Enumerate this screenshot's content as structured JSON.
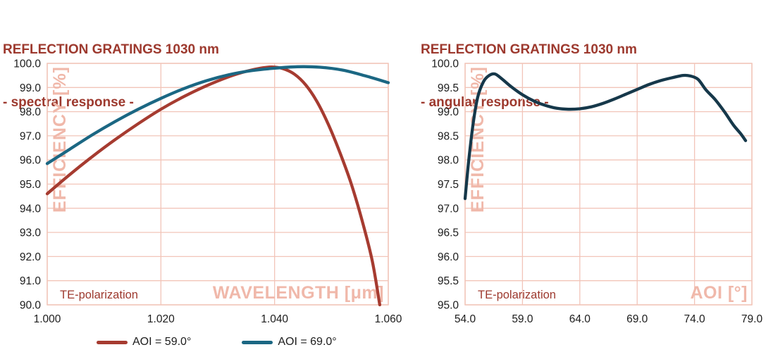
{
  "colors": {
    "title": "#9d392e",
    "grid": "#f2c5b9",
    "axis_label": "#f0b8aa",
    "tick_label": "#1c1c1c",
    "series_red": "#a63b30",
    "series_teal": "#1b6783",
    "series_navy": "#16384a",
    "background": "#ffffff"
  },
  "chart_data": [
    {
      "type": "line",
      "title": "REFLECTION GRATINGS 1030 nm",
      "subtitle": "- spectral response -",
      "xlabel": "WAVELENGTH [μm]",
      "ylabel": "EFFICIENCY [%]",
      "annotation": "TE-polarization",
      "xlim": [
        1.0,
        1.06
      ],
      "ylim": [
        90.0,
        100.0
      ],
      "x_ticks": [
        1.0,
        1.02,
        1.04,
        1.06
      ],
      "x_tick_labels": [
        "1.000",
        "1.020",
        "1.040",
        "1.060"
      ],
      "y_ticks": [
        90,
        91,
        92,
        93,
        94,
        95,
        96,
        97,
        98,
        99,
        100
      ],
      "y_tick_labels": [
        "90.0",
        "91.0",
        "92.0",
        "93.0",
        "94.0",
        "95.0",
        "96.0",
        "97.0",
        "98.0",
        "99.0",
        "100.0"
      ],
      "grid": true,
      "legend_position": "bottom",
      "series": [
        {
          "name": "AOI = 59.0°",
          "color": "#a63b30",
          "points": [
            [
              1.0,
              94.6
            ],
            [
              1.004,
              95.4
            ],
            [
              1.008,
              96.15
            ],
            [
              1.012,
              96.85
            ],
            [
              1.016,
              97.5
            ],
            [
              1.02,
              98.1
            ],
            [
              1.024,
              98.62
            ],
            [
              1.028,
              99.07
            ],
            [
              1.032,
              99.45
            ],
            [
              1.035,
              99.67
            ],
            [
              1.0375,
              99.8
            ],
            [
              1.0395,
              99.85
            ],
            [
              1.0415,
              99.78
            ],
            [
              1.0435,
              99.55
            ],
            [
              1.0455,
              99.1
            ],
            [
              1.0475,
              98.4
            ],
            [
              1.0495,
              97.45
            ],
            [
              1.0515,
              96.3
            ],
            [
              1.0535,
              95.0
            ],
            [
              1.0555,
              93.4
            ],
            [
              1.0572,
              91.8
            ],
            [
              1.0585,
              90.0
            ]
          ]
        },
        {
          "name": "AOI = 69.0°",
          "color": "#1b6783",
          "points": [
            [
              1.0,
              95.85
            ],
            [
              1.004,
              96.45
            ],
            [
              1.008,
              97.05
            ],
            [
              1.012,
              97.6
            ],
            [
              1.016,
              98.1
            ],
            [
              1.02,
              98.55
            ],
            [
              1.024,
              98.95
            ],
            [
              1.028,
              99.28
            ],
            [
              1.032,
              99.53
            ],
            [
              1.036,
              99.7
            ],
            [
              1.04,
              99.8
            ],
            [
              1.044,
              99.86
            ],
            [
              1.048,
              99.84
            ],
            [
              1.052,
              99.72
            ],
            [
              1.056,
              99.48
            ],
            [
              1.06,
              99.2
            ]
          ]
        }
      ]
    },
    {
      "type": "line",
      "title": "REFLECTION GRATINGS 1030 nm",
      "subtitle": "- angular response -",
      "xlabel": "AOI [°]",
      "ylabel": "EFFICIENCY [%]",
      "annotation": "TE-polarization",
      "xlim": [
        54.0,
        79.0
      ],
      "ylim": [
        95.0,
        100.0
      ],
      "x_ticks": [
        54,
        59,
        64,
        69,
        74,
        79
      ],
      "x_tick_labels": [
        "54.0",
        "59.0",
        "64.0",
        "69.0",
        "74.0",
        "79.0"
      ],
      "y_ticks": [
        95,
        95.5,
        96,
        96.5,
        97,
        97.5,
        98,
        98.5,
        99,
        99.5,
        100
      ],
      "y_tick_labels": [
        "95.0",
        "95.5",
        "96.0",
        "96.5",
        "97.0",
        "97.5",
        "98.0",
        "98.5",
        "99.0",
        "99.5",
        "100.0"
      ],
      "grid": true,
      "legend_position": "none",
      "series": [
        {
          "color": "#16384a",
          "points": [
            [
              54.0,
              97.2
            ],
            [
              54.3,
              97.95
            ],
            [
              54.7,
              98.75
            ],
            [
              55.1,
              99.3
            ],
            [
              55.6,
              99.62
            ],
            [
              56.1,
              99.75
            ],
            [
              56.6,
              99.78
            ],
            [
              57.2,
              99.68
            ],
            [
              58.0,
              99.52
            ],
            [
              59.0,
              99.35
            ],
            [
              60.0,
              99.22
            ],
            [
              61.0,
              99.13
            ],
            [
              62.0,
              99.07
            ],
            [
              63.0,
              99.05
            ],
            [
              64.0,
              99.06
            ],
            [
              65.0,
              99.1
            ],
            [
              66.0,
              99.17
            ],
            [
              67.0,
              99.26
            ],
            [
              68.0,
              99.36
            ],
            [
              69.0,
              99.46
            ],
            [
              70.0,
              99.56
            ],
            [
              71.0,
              99.64
            ],
            [
              72.0,
              99.7
            ],
            [
              73.0,
              99.75
            ],
            [
              73.6,
              99.74
            ],
            [
              74.3,
              99.67
            ],
            [
              75.0,
              99.45
            ],
            [
              75.8,
              99.25
            ],
            [
              76.6,
              99.0
            ],
            [
              77.4,
              98.72
            ],
            [
              78.0,
              98.55
            ],
            [
              78.45,
              98.4
            ]
          ]
        }
      ]
    }
  ]
}
